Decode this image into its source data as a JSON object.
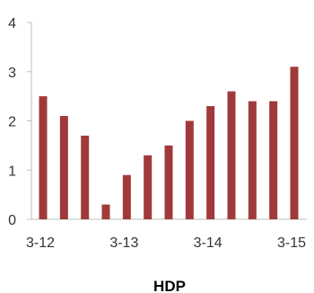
{
  "chart_data": {
    "type": "bar",
    "categories": [
      "3-12",
      "",
      "",
      "",
      "3-13",
      "",
      "",
      "",
      "3-14",
      "",
      "",
      "",
      "3-15"
    ],
    "x_tick_labels": [
      "3-12",
      "3-13",
      "3-14",
      "3-15"
    ],
    "values": [
      2.5,
      2.1,
      1.7,
      0.3,
      0.9,
      1.3,
      1.5,
      2.0,
      2.3,
      2.6,
      2.4,
      2.4,
      3.1
    ],
    "y_ticks": [
      0,
      1,
      2,
      3,
      4
    ],
    "ylim": [
      0,
      4
    ],
    "xlabel": "HDP",
    "ylabel": "",
    "title": "",
    "grid": false,
    "colors": {
      "bar": "#a03a3a",
      "axis": "#bfbfbf"
    }
  }
}
